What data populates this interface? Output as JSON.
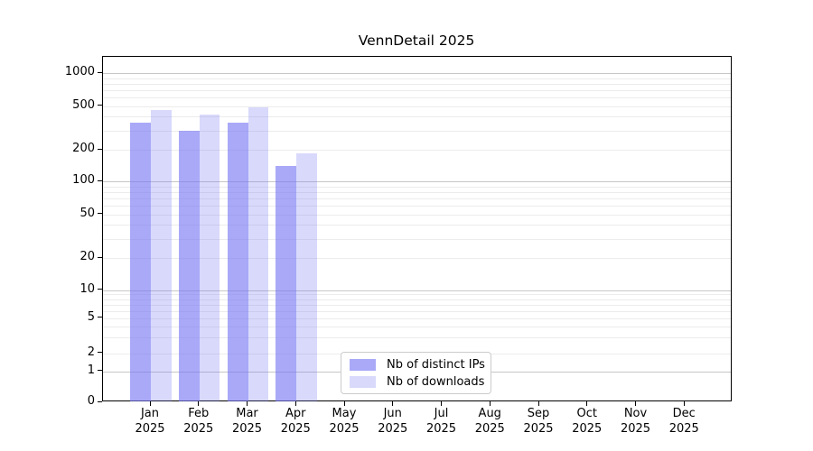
{
  "title": "VennDetail 2025",
  "chart_data": {
    "type": "bar",
    "title": "VennDetail 2025",
    "categories": [
      "Jan",
      "Feb",
      "Mar",
      "Apr",
      "May",
      "Jun",
      "Jul",
      "Aug",
      "Sep",
      "Oct",
      "Nov",
      "Dec"
    ],
    "year_label": "2025",
    "series": [
      {
        "name": "Nb of distinct IPs",
        "values": [
          350,
          295,
          350,
          140,
          0,
          0,
          0,
          0,
          0,
          0,
          0,
          0
        ]
      },
      {
        "name": "Nb of downloads",
        "values": [
          460,
          420,
          490,
          185,
          0,
          0,
          0,
          0,
          0,
          0,
          0,
          0
        ]
      }
    ],
    "yticks": [
      1000,
      500,
      200,
      100,
      50,
      20,
      10,
      5,
      2,
      1,
      0
    ],
    "yscale": "log-like",
    "ylim": [
      0,
      1400
    ],
    "xlabel": "",
    "ylabel": "",
    "grid": true,
    "legend_position": "lower-center"
  },
  "colors": {
    "bar_base": "#7474F3",
    "ips_bar_alpha": 0.62,
    "downloads_bar_alpha": 0.27,
    "grid_minor": "#ECECEC",
    "grid_major": "#C7C7C7",
    "axis": "#000000",
    "text": "#1A1A1A",
    "legend_border": "#CCCCCC",
    "background": "#FFFFFF"
  }
}
